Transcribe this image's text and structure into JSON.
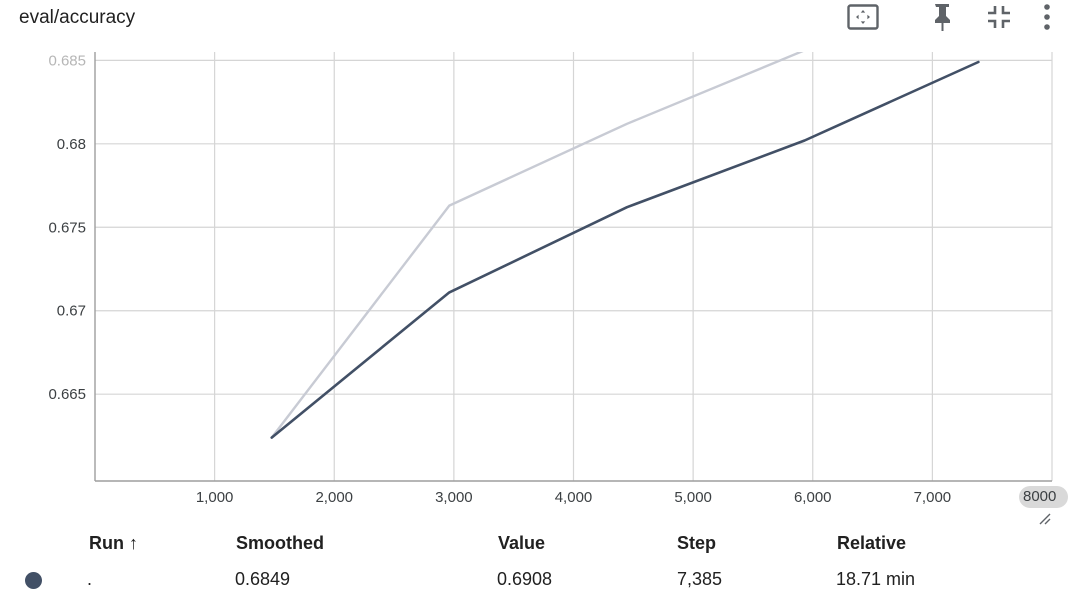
{
  "card": {
    "title": "eval/accuracy"
  },
  "toolbar": {
    "icons": [
      "fit-domain-icon",
      "pin-icon",
      "collapse-icon",
      "more-vert-icon"
    ]
  },
  "chart_data": {
    "type": "line",
    "title": "eval/accuracy",
    "xlabel": "",
    "ylabel": "",
    "xlim": [
      0,
      8000
    ],
    "ylim": [
      0.6598,
      0.6855
    ],
    "grid": true,
    "x_ticks": [
      1000,
      2000,
      3000,
      4000,
      5000,
      6000,
      7000
    ],
    "x_tick_labels": [
      "1,000",
      "2,000",
      "3,000",
      "4,000",
      "5,000",
      "6,000",
      "7,000"
    ],
    "overflow_x_label": "8000",
    "y_ticks": [
      0.665,
      0.67,
      0.675,
      0.68,
      0.685
    ],
    "y_tick_labels": [
      "0.665",
      "0.67",
      "0.675",
      "0.68",
      "0.685"
    ],
    "series": [
      {
        "role": "raw",
        "color": "#c8cbd4",
        "points": [
          [
            1477,
            0.6624
          ],
          [
            2962,
            0.6763
          ],
          [
            4447,
            0.6812
          ],
          [
            5932,
            0.6856
          ],
          [
            7385,
            0.6908
          ]
        ]
      },
      {
        "role": "smoothed",
        "color": "#425066",
        "points": [
          [
            1477,
            0.6624
          ],
          [
            2962,
            0.6711
          ],
          [
            4447,
            0.6762
          ],
          [
            5932,
            0.6802
          ],
          [
            7385,
            0.6849
          ]
        ]
      }
    ]
  },
  "table": {
    "headers": {
      "run": "Run ↑",
      "smoothed": "Smoothed",
      "value": "Value",
      "step": "Step",
      "relative": "Relative"
    },
    "rows": [
      {
        "color": "#425066",
        "run": ".",
        "smoothed": "0.6849",
        "value": "0.6908",
        "step": "7,385",
        "relative": "18.71 min"
      }
    ]
  }
}
